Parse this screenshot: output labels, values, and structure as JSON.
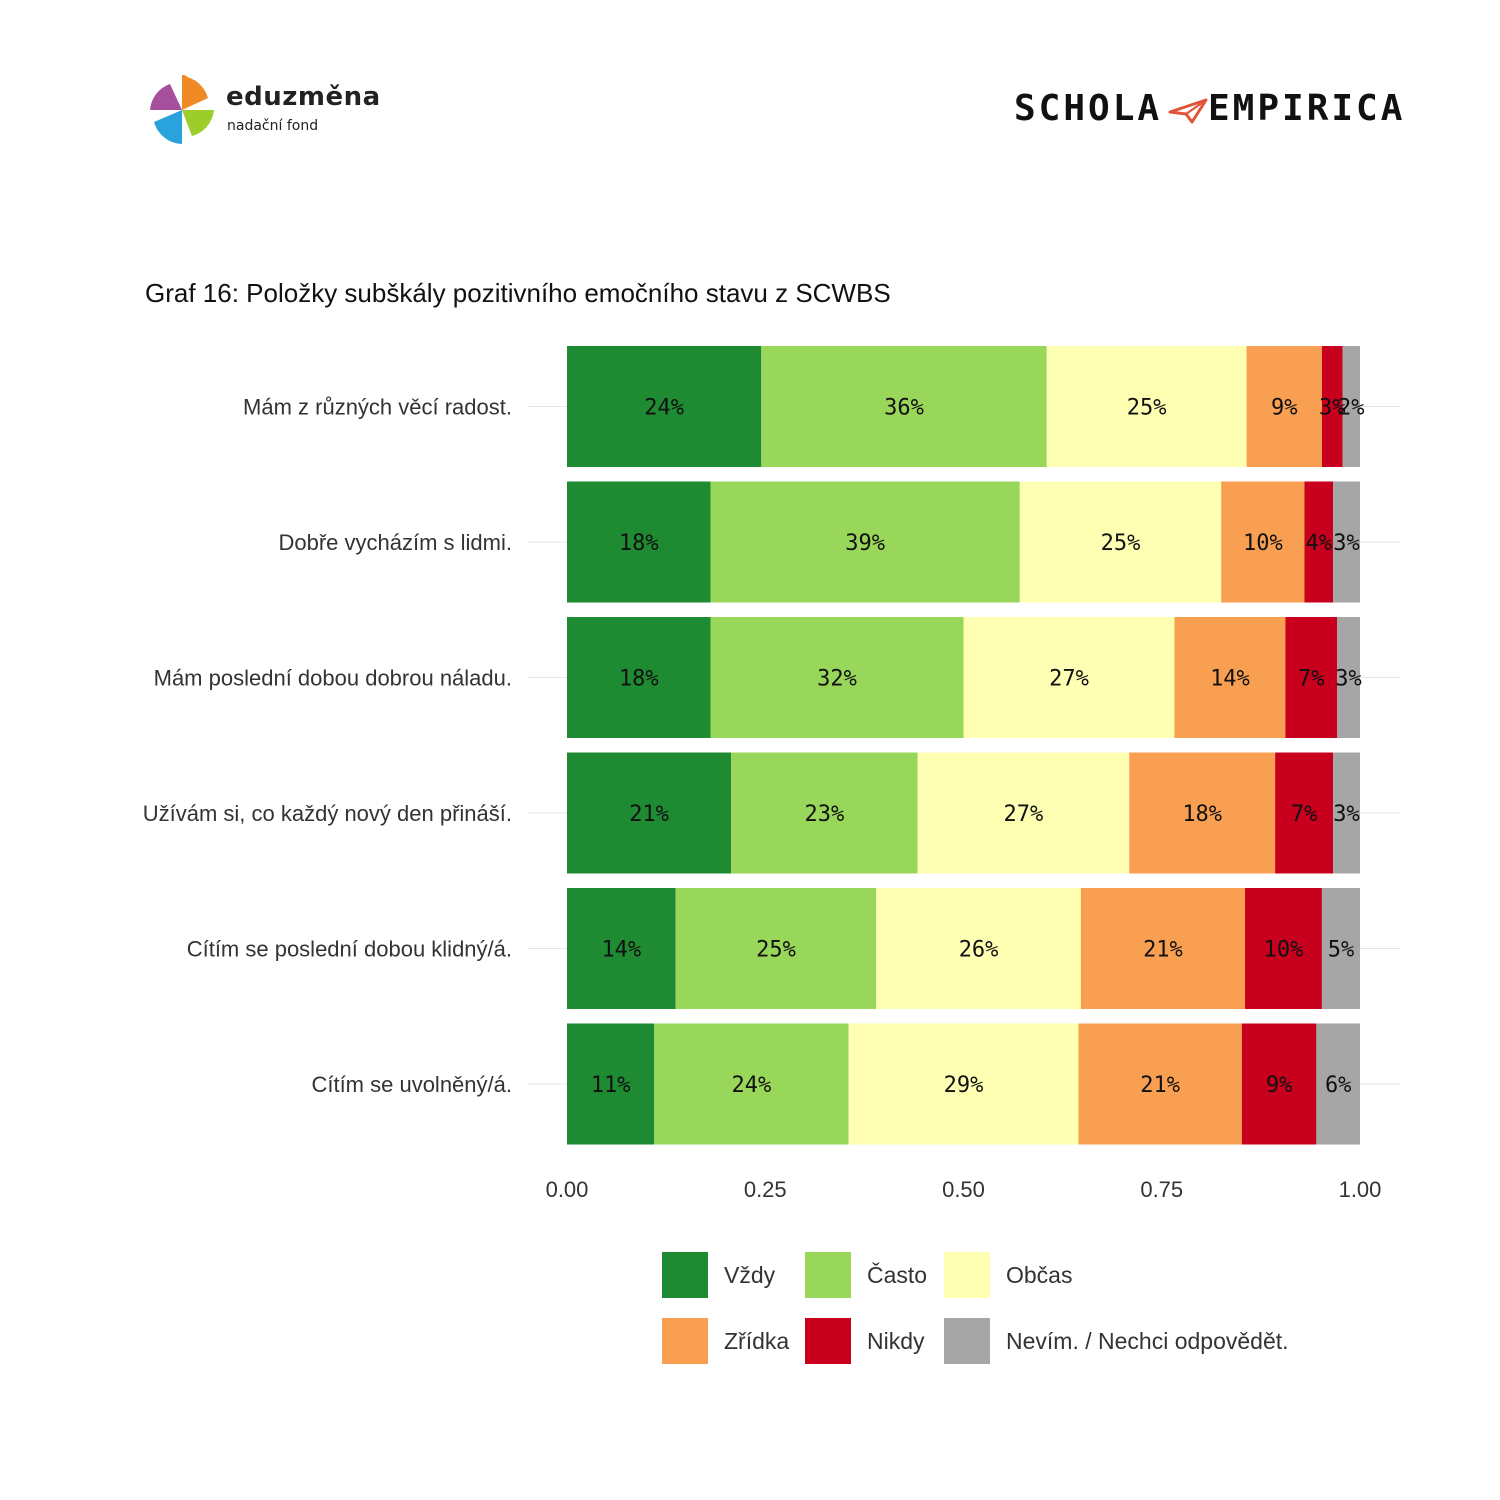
{
  "logos": {
    "left": {
      "name": "eduzměna",
      "sub": "nadační fond"
    },
    "right": {
      "left_word": "SCHOLA",
      "right_word": "EMPIRICA"
    }
  },
  "chart_data": {
    "type": "bar",
    "orientation": "horizontal-stacked",
    "title": "Graf 16: Položky subškály pozitivního emočního stavu z SCWBS",
    "categories": [
      "Mám z různých věcí radost.",
      "Dobře vycházím s lidmi.",
      "Mám poslední dobou dobrou náladu.",
      "Užívám si, co každý nový den přináší.",
      "Cítím se poslední dobou klidný/á.",
      "Cítím se uvolněný/á."
    ],
    "series": [
      {
        "name": "Vždy",
        "color": "#1e8b32",
        "values": [
          0.245,
          0.181,
          0.181,
          0.207,
          0.137,
          0.11
        ],
        "labels": [
          "24%",
          "18%",
          "18%",
          "21%",
          "14%",
          "11%"
        ]
      },
      {
        "name": "Často",
        "color": "#99d75a",
        "values": [
          0.36,
          0.39,
          0.319,
          0.235,
          0.253,
          0.245
        ],
        "labels": [
          "36%",
          "39%",
          "32%",
          "23%",
          "25%",
          "24%"
        ]
      },
      {
        "name": "Občas",
        "color": "#feffb3",
        "values": [
          0.252,
          0.254,
          0.266,
          0.267,
          0.258,
          0.29
        ],
        "labels": [
          "25%",
          "25%",
          "27%",
          "27%",
          "26%",
          "29%"
        ]
      },
      {
        "name": "Zřídka",
        "color": "#f89f52",
        "values": [
          0.095,
          0.105,
          0.14,
          0.184,
          0.207,
          0.206
        ],
        "labels": [
          "9%",
          "10%",
          "14%",
          "18%",
          "21%",
          "21%"
        ]
      },
      {
        "name": "Nikdy",
        "color": "#c8001e",
        "values": [
          0.026,
          0.036,
          0.065,
          0.073,
          0.097,
          0.094
        ],
        "labels": [
          "3%",
          "4%",
          "7%",
          "7%",
          "10%",
          "9%"
        ]
      },
      {
        "name": "Nevím. / Nechci odpovědět.",
        "color": "#a6a6a6",
        "values": [
          0.022,
          0.034,
          0.029,
          0.034,
          0.048,
          0.055
        ],
        "labels": [
          "2%",
          "3%",
          "3%",
          "3%",
          "5%",
          "6%"
        ]
      }
    ],
    "x_ticks": [
      "0.00",
      "0.25",
      "0.50",
      "0.75",
      "1.00"
    ],
    "xlim": [
      0,
      1
    ],
    "grid": "horizontal only",
    "legend": "bottom"
  }
}
